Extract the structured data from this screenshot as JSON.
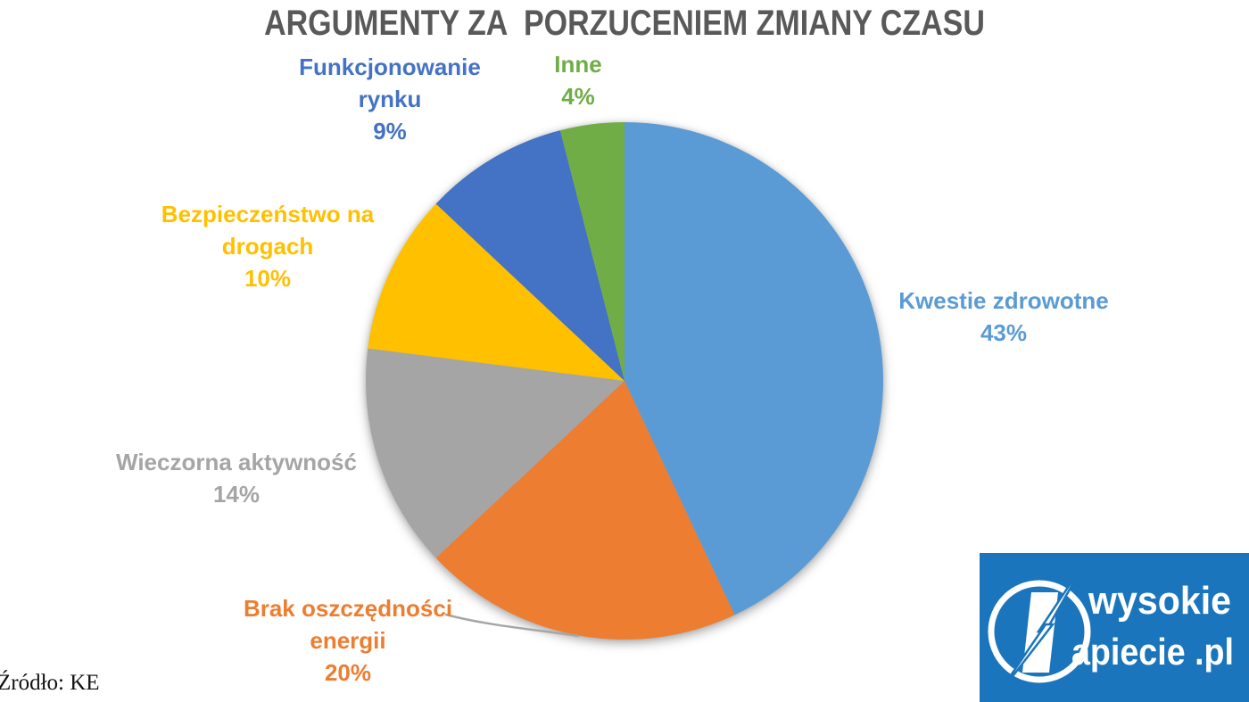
{
  "title": "ARGUMENTY ZA  PORZUCENIEM ZMIANY CZASU",
  "source": "Źródło: KE",
  "logo": {
    "line1": "wysokie",
    "line2": "apiecie .pl",
    "bg_color": "#1B75BC"
  },
  "chart_data": {
    "type": "pie",
    "title": "ARGUMENTY ZA  PORZUCENIEM ZMIANY CZASU",
    "legend_position": "outside-data-labels",
    "direction": "clockwise",
    "start_angle": "12-oclock",
    "slices": [
      {
        "label": "Kwestie zdrowotne",
        "value": 43,
        "pct_label": "43%",
        "color": "#5B9BD5",
        "lines": [
          "Kwestie zdrowotne"
        ]
      },
      {
        "label": "Brak oszczędności energii",
        "value": 20,
        "pct_label": "20%",
        "color": "#ED7D31",
        "lines": [
          "Brak oszczędności",
          "energii"
        ]
      },
      {
        "label": "Wieczorna aktywność",
        "value": 14,
        "pct_label": "14%",
        "color": "#A5A5A5",
        "lines": [
          "Wieczorna aktywność"
        ]
      },
      {
        "label": "Bezpieczeństwo na drogach",
        "value": 10,
        "pct_label": "10%",
        "color": "#FFC000",
        "lines": [
          "Bezpieczeństwo na",
          "drogach"
        ]
      },
      {
        "label": "Funkcjonowanie rynku",
        "value": 9,
        "pct_label": "9%",
        "color": "#4472C4",
        "lines": [
          "Funkcjonowanie",
          "rynku"
        ]
      },
      {
        "label": "Inne",
        "value": 4,
        "pct_label": "4%",
        "color": "#70AD47",
        "lines": [
          "Inne"
        ]
      }
    ]
  }
}
